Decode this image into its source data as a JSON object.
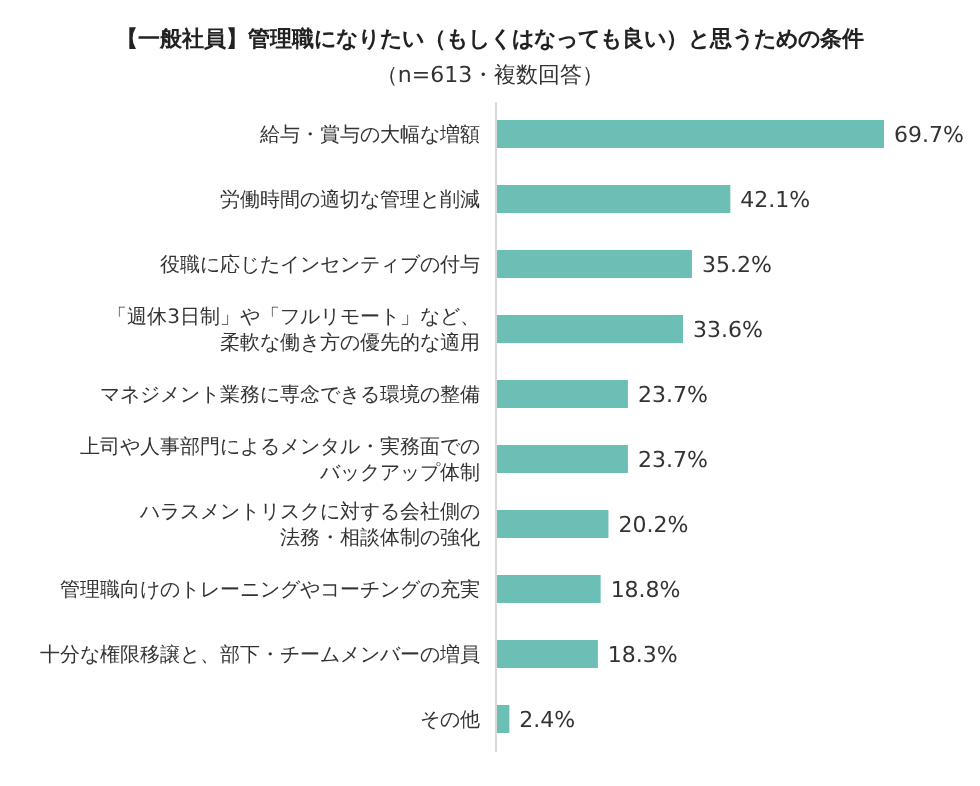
{
  "chart_data": {
    "type": "bar",
    "orientation": "horizontal",
    "title": "【一般社員】管理職になりたい（もしくはなっても良い）と思うための条件",
    "subtitle": "（n=613・複数回答）",
    "categories": [
      "給与・賞与の大幅な増額",
      "労働時間の適切な管理と削減",
      "役職に応じたインセンティブの付与",
      "「週休3日制」や「フルリモート」など、柔軟な働き方の優先的な適用",
      "マネジメント業務に専念できる環境の整備",
      "上司や人事部門によるメンタル・実務面でのバックアップ体制",
      "ハラスメントリスクに対する会社側の法務・相談体制の強化",
      "管理職向けのトレーニングやコーチングの充実",
      "十分な権限移譲と、部下・チームメンバーの増員",
      "その他"
    ],
    "values": [
      69.7,
      42.1,
      35.2,
      33.6,
      23.7,
      23.7,
      20.2,
      18.8,
      18.3,
      2.4
    ],
    "value_labels": [
      "69.7%",
      "42.1%",
      "35.2%",
      "33.6%",
      "23.7%",
      "23.7%",
      "20.2%",
      "18.8%",
      "18.3%",
      "2.4%"
    ],
    "color": "#6cbfb5",
    "tick_labels": "y",
    "grid": false,
    "legend": false
  }
}
